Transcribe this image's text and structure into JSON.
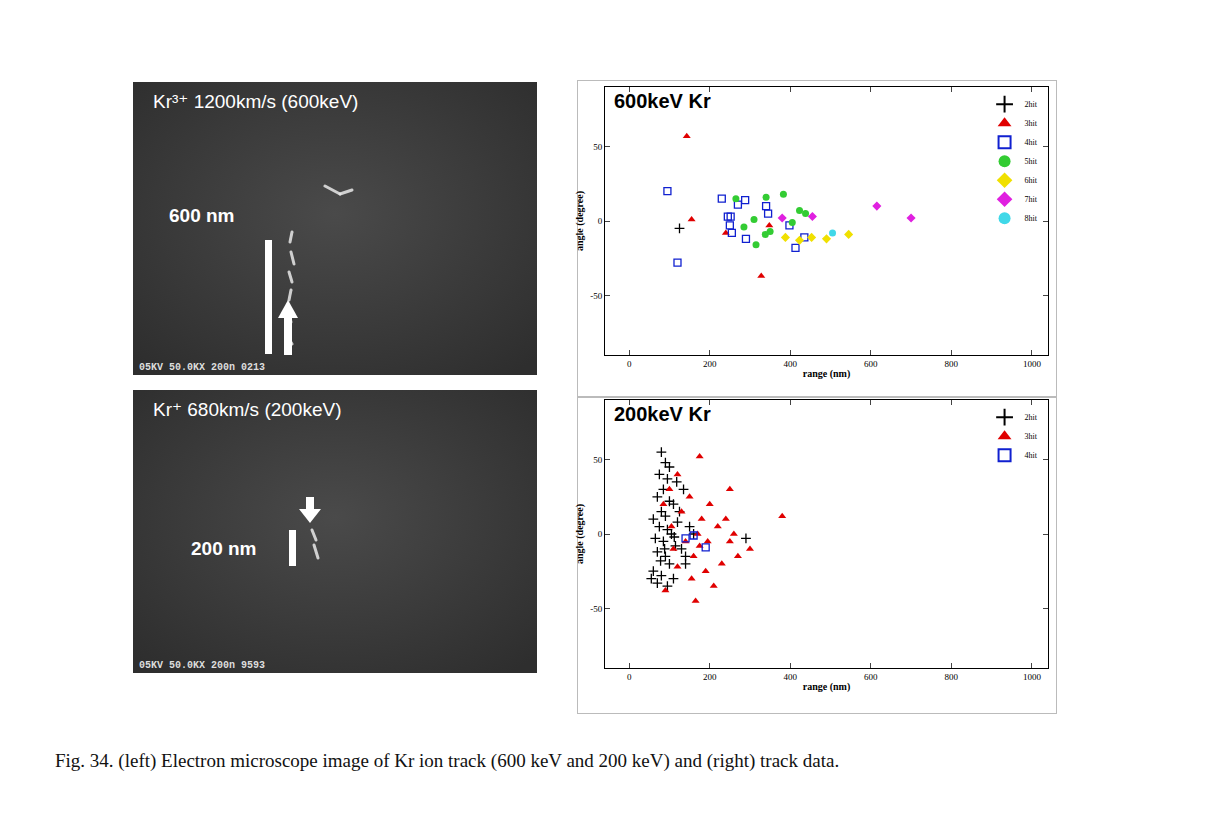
{
  "micrographs": [
    {
      "title": "Kr³⁺ 1200km/s (600keV)",
      "scale_label": "600 nm",
      "footer": "05KV 50.0KX 200n 0213"
    },
    {
      "title": "Kr⁺ 680km/s (200keV)",
      "scale_label": "200 nm",
      "footer": "05KV 50.0KX 200n 9593"
    }
  ],
  "caption": "Fig. 34.  (left) Electron microscope image of Kr ion track (600 keV and 200 keV) and (right) track data.",
  "chart_data": [
    {
      "type": "scatter",
      "title": "600keV Kr",
      "x_label": "range (nm)",
      "y_label": "angle (degree)",
      "xlim": [
        -60,
        1040
      ],
      "xticks": [
        0,
        200,
        400,
        600,
        800,
        1000
      ],
      "ylim": [
        -90,
        90
      ],
      "yticks": [
        -50,
        0,
        50
      ],
      "legend": "top right",
      "series": [
        {
          "name": "2hit",
          "color": "#000000",
          "marker": "plus",
          "x": [
            125
          ],
          "values": [
            -5
          ]
        },
        {
          "name": "3hit",
          "color": "#e00000",
          "marker": "triangle",
          "x": [
            143,
            155,
            240,
            328,
            348
          ],
          "values": [
            57,
            1,
            -8,
            -37,
            -3
          ]
        },
        {
          "name": "4hit",
          "color": "#1020d0",
          "marker": "square-open",
          "x": [
            95,
            120,
            230,
            245,
            250,
            252,
            255,
            270,
            288,
            290,
            340,
            345,
            398,
            413,
            435
          ],
          "values": [
            20,
            -28,
            15,
            3,
            -3,
            3,
            -8,
            11,
            14,
            -12,
            10,
            5,
            -3,
            -18,
            -11
          ]
        },
        {
          "name": "5hit",
          "color": "#33cc33",
          "marker": "circle",
          "x": [
            265,
            285,
            310,
            315,
            338,
            340,
            350,
            383,
            405,
            423,
            438
          ],
          "values": [
            15,
            -4,
            1,
            -16,
            -9,
            16,
            -7,
            18,
            -1,
            7,
            5
          ]
        },
        {
          "name": "6hit",
          "color": "#f0e000",
          "marker": "diamond",
          "x": [
            388,
            423,
            453,
            490,
            545
          ],
          "values": [
            -11,
            -13,
            -11,
            -12,
            -9
          ]
        },
        {
          "name": "7hit",
          "color": "#e020e0",
          "marker": "diamond",
          "x": [
            380,
            455,
            615,
            700
          ],
          "values": [
            2,
            3,
            10,
            2
          ]
        },
        {
          "name": "8hit",
          "color": "#40d8e8",
          "marker": "circle",
          "x": [
            505
          ],
          "values": [
            -8
          ]
        }
      ]
    },
    {
      "type": "scatter",
      "title": "200keV Kr",
      "x_label": "range (nm)",
      "y_label": "angle (degree)",
      "xlim": [
        -60,
        1040
      ],
      "xticks": [
        0,
        200,
        400,
        600,
        800,
        1000
      ],
      "ylim": [
        -90,
        90
      ],
      "yticks": [
        -50,
        0,
        50
      ],
      "legend": "top right",
      "series": [
        {
          "name": "2hit",
          "color": "#000000",
          "marker": "plus",
          "x": [
            80,
            90,
            75,
            95,
            85,
            70,
            100,
            110,
            80,
            90,
            60,
            120,
            75,
            95,
            105,
            65,
            85,
            115,
            130,
            70,
            90,
            100,
            60,
            80,
            110,
            70,
            95,
            140,
            150,
            125,
            135,
            100,
            88,
            112,
            290,
            140,
            160,
            55,
            118,
            78
          ],
          "values": [
            55,
            48,
            40,
            37,
            30,
            25,
            22,
            20,
            15,
            12,
            10,
            8,
            5,
            3,
            0,
            -3,
            -5,
            -8,
            -10,
            -12,
            -15,
            -20,
            -25,
            -28,
            -30,
            -33,
            -35,
            -20,
            5,
            15,
            30,
            45,
            -10,
            -2,
            -3,
            -15,
            0,
            -30,
            35,
            -18
          ]
        },
        {
          "name": "3hit",
          "color": "#e00000",
          "marker": "triangle",
          "x": [
            175,
            120,
            100,
            150,
            200,
            180,
            170,
            220,
            250,
            140,
            110,
            160,
            190,
            210,
            165,
            90,
            250,
            300,
            260,
            380,
            130,
            105,
            230,
            155,
            195,
            240,
            120,
            85,
            175,
            270
          ],
          "values": [
            52,
            40,
            30,
            25,
            20,
            10,
            0,
            5,
            -5,
            -5,
            -10,
            -15,
            -25,
            -35,
            -45,
            -38,
            30,
            -10,
            0,
            12,
            15,
            5,
            -20,
            -30,
            -5,
            10,
            -22,
            20,
            -8,
            -15
          ]
        },
        {
          "name": "4hit",
          "color": "#1020d0",
          "marker": "square-open",
          "x": [
            140,
            160,
            190
          ],
          "values": [
            -3,
            -1,
            -9
          ]
        }
      ]
    }
  ]
}
